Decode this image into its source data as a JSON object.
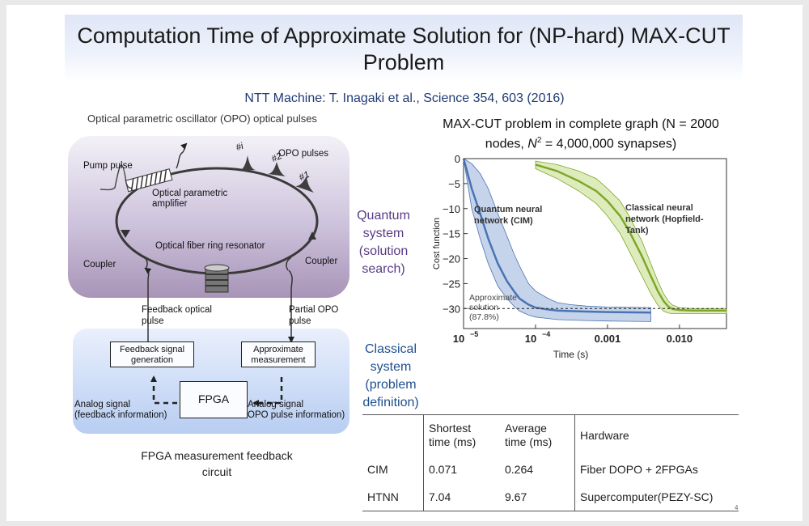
{
  "slide": {
    "title": "Computation Time of Approximate Solution for (NP-hard) MAX-CUT Problem",
    "subtitle": "NTT Machine: T. Inagaki et al., Science 354, 603 (2016)",
    "page_number": "4"
  },
  "diagram": {
    "opo_caption": "Optical parametric oscillator (OPO) optical pulses",
    "pump_pulse": "Pump pulse",
    "opo_pulses": "OPO pulses",
    "pulse_labels": [
      "#i",
      "#2",
      "#1"
    ],
    "amplifier_line1": "Optical parametric",
    "amplifier_line2": "amplifier",
    "ring_resonator": "Optical fiber ring resonator",
    "coupler_left": "Coupler",
    "coupler_right": "Coupler",
    "feedback_pulse_line1": "Feedback optical",
    "feedback_pulse_line2": "pulse",
    "partial_pulse_line1": "Partial OPO",
    "partial_pulse_line2": "pulse",
    "fb_box_line1": "Feedback signal",
    "fb_box_line2": "generation",
    "am_box_line1": "Approximate",
    "am_box_line2": "measurement",
    "fpga": "FPGA",
    "analog_left_line1": "Analog signal",
    "analog_left_line2": "(feedback information)",
    "analog_right_line1": "Analog signal",
    "analog_right_line2": "OPO pulse information)",
    "quantum_label": [
      "Quantum",
      "system",
      "(solution",
      "search)"
    ],
    "classical_label": [
      "Classical",
      "system",
      "(problem",
      "definition)"
    ],
    "fpga_caption_line1": "FPGA measurement feedback",
    "fpga_caption_line2": "circuit"
  },
  "chart_title": {
    "line1": "MAX-CUT  problem  in complete graph (N = 2000",
    "line2_prefix": "nodes, ",
    "line2_var": "N",
    "line2_sup": "2",
    "line2_suffix": " = 4,000,000 synapses)"
  },
  "chart_data": {
    "type": "line",
    "xlabel": "Time (s)",
    "ylabel": "Cost function",
    "xscale": "log",
    "xlim": [
      1e-05,
      0.045
    ],
    "ylim": [
      -34,
      0
    ],
    "x_ticks": [
      "10",
      "10",
      "0.001",
      "0.010"
    ],
    "x_tick_exponents": [
      "−5",
      "−4",
      "",
      ""
    ],
    "y_ticks": [
      "0",
      "−5",
      "−10",
      "−15",
      "−20",
      "−25",
      "−30"
    ],
    "annotations": {
      "cim_line1": "Quantum neural",
      "cim_line2": "network (CIM)",
      "htnn_line1": "Classical neural",
      "htnn_line2": "network (Hopfield-",
      "htnn_line3": "Tank)",
      "approx_line1": "Approximate",
      "approx_line2": "solution",
      "approx_line3": "(87.8%)"
    },
    "approximate_solution": -30,
    "series": [
      {
        "name": "Quantum neural network (CIM)",
        "color": "#4a73b3",
        "band_color": "#b3c6e4",
        "x": [
          1e-05,
          1.3e-05,
          1.7e-05,
          2.2e-05,
          3e-05,
          4e-05,
          5e-05,
          6e-05,
          8e-05,
          0.0001,
          0.00015,
          0.0002,
          0.0003,
          0.0005,
          0.001,
          0.004
        ],
        "mean": [
          0,
          -6,
          -11,
          -16,
          -21,
          -24.5,
          -26.5,
          -28,
          -29.2,
          -29.8,
          -30.2,
          -30.4,
          -30.5,
          -30.6,
          -30.7,
          -30.8
        ],
        "upper": [
          0,
          -1,
          -3,
          -6,
          -11,
          -15.5,
          -19,
          -21.5,
          -25,
          -26.5,
          -28,
          -28.8,
          -29.2,
          -29.5,
          -29.7,
          -29.8
        ],
        "lower": [
          0,
          -10,
          -16,
          -21,
          -25.5,
          -28,
          -29.5,
          -30.5,
          -31.3,
          -31.7,
          -32,
          -32.2,
          -32.3,
          -32.4,
          -32.5,
          -32.6
        ]
      },
      {
        "name": "Classical neural network (Hopfield-Tank)",
        "color": "#7ea728",
        "band_color": "#d3e4a6",
        "x": [
          0.0001,
          0.0002,
          0.0004,
          0.0007,
          0.001,
          0.0015,
          0.002,
          0.003,
          0.004,
          0.005,
          0.006,
          0.007,
          0.008,
          0.01,
          0.015,
          0.02,
          0.03,
          0.045
        ],
        "mean": [
          -1.2,
          -2.5,
          -4.5,
          -6.5,
          -8.5,
          -11.5,
          -14.5,
          -19.5,
          -23.5,
          -26.5,
          -28.5,
          -29.6,
          -30.1,
          -30.3,
          -30.4,
          -30.4,
          -30.4,
          -30.4
        ],
        "upper": [
          -0.5,
          -1.2,
          -2.5,
          -4,
          -6,
          -8.5,
          -11.5,
          -16.5,
          -21,
          -24.5,
          -27,
          -28.5,
          -29.3,
          -29.8,
          -30,
          -30,
          -30,
          -30
        ],
        "lower": [
          -2,
          -4,
          -6.5,
          -9,
          -11.5,
          -15,
          -18.5,
          -23.5,
          -27,
          -29.3,
          -30.5,
          -30.9,
          -31,
          -31,
          -31,
          -31,
          -31,
          -31
        ]
      }
    ]
  },
  "table": {
    "headers": {
      "shortest_line1": "Shortest",
      "shortest_line2": "time (ms)",
      "average_line1": "Average",
      "average_line2": "time (ms)",
      "hardware": "Hardware"
    },
    "rows": [
      {
        "name": "CIM",
        "shortest": "0.071",
        "average": "0.264",
        "hardware": "Fiber DOPO + 2FPGAs"
      },
      {
        "name": "HTNN",
        "shortest": "7.04",
        "average": "9.67",
        "hardware": "Supercomputer(PEZY-SC)"
      }
    ]
  },
  "colors": {
    "title_text": "#1a1a1a",
    "citation_text": "#1f3b74",
    "quantum_label": "#5a3b86",
    "classical_label": "#1f4f8f"
  }
}
